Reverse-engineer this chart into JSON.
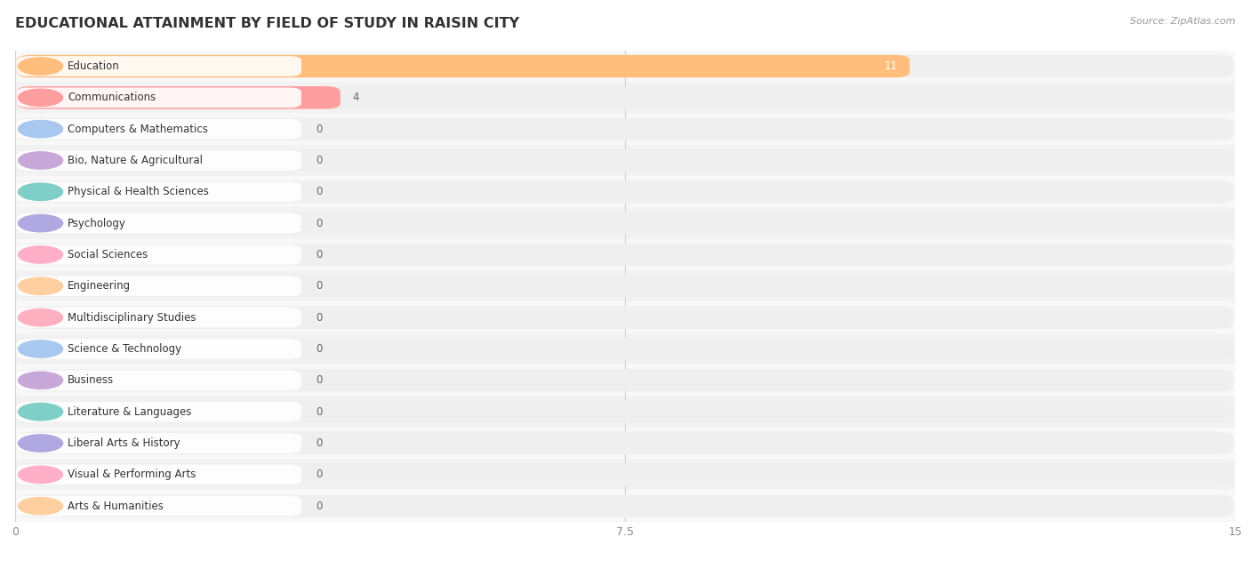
{
  "title": "EDUCATIONAL ATTAINMENT BY FIELD OF STUDY IN RAISIN CITY",
  "source": "Source: ZipAtlas.com",
  "categories": [
    "Education",
    "Communications",
    "Computers & Mathematics",
    "Bio, Nature & Agricultural",
    "Physical & Health Sciences",
    "Psychology",
    "Social Sciences",
    "Engineering",
    "Multidisciplinary Studies",
    "Science & Technology",
    "Business",
    "Literature & Languages",
    "Liberal Arts & History",
    "Visual & Performing Arts",
    "Arts & Humanities"
  ],
  "values": [
    11,
    4,
    0,
    0,
    0,
    0,
    0,
    0,
    0,
    0,
    0,
    0,
    0,
    0,
    0
  ],
  "bar_colors": [
    "#FFBE7D",
    "#FF9E9E",
    "#A8C8F0",
    "#C8A8D8",
    "#80CEC8",
    "#B0A8E0",
    "#FFB0C8",
    "#FFCFA0",
    "#FFB0C0",
    "#A8C8F0",
    "#C8A8D8",
    "#80CEC8",
    "#B0A8E0",
    "#FFB0C8",
    "#FFCFA0"
  ],
  "xlim": [
    0,
    15
  ],
  "xticks": [
    0,
    7.5,
    15
  ],
  "background_color": "#ffffff",
  "plot_bg_color": "#ffffff",
  "row_bg_color": "#efefef",
  "title_fontsize": 11.5,
  "label_fontsize": 8.5,
  "tick_fontsize": 9,
  "value_fontsize": 8.5
}
